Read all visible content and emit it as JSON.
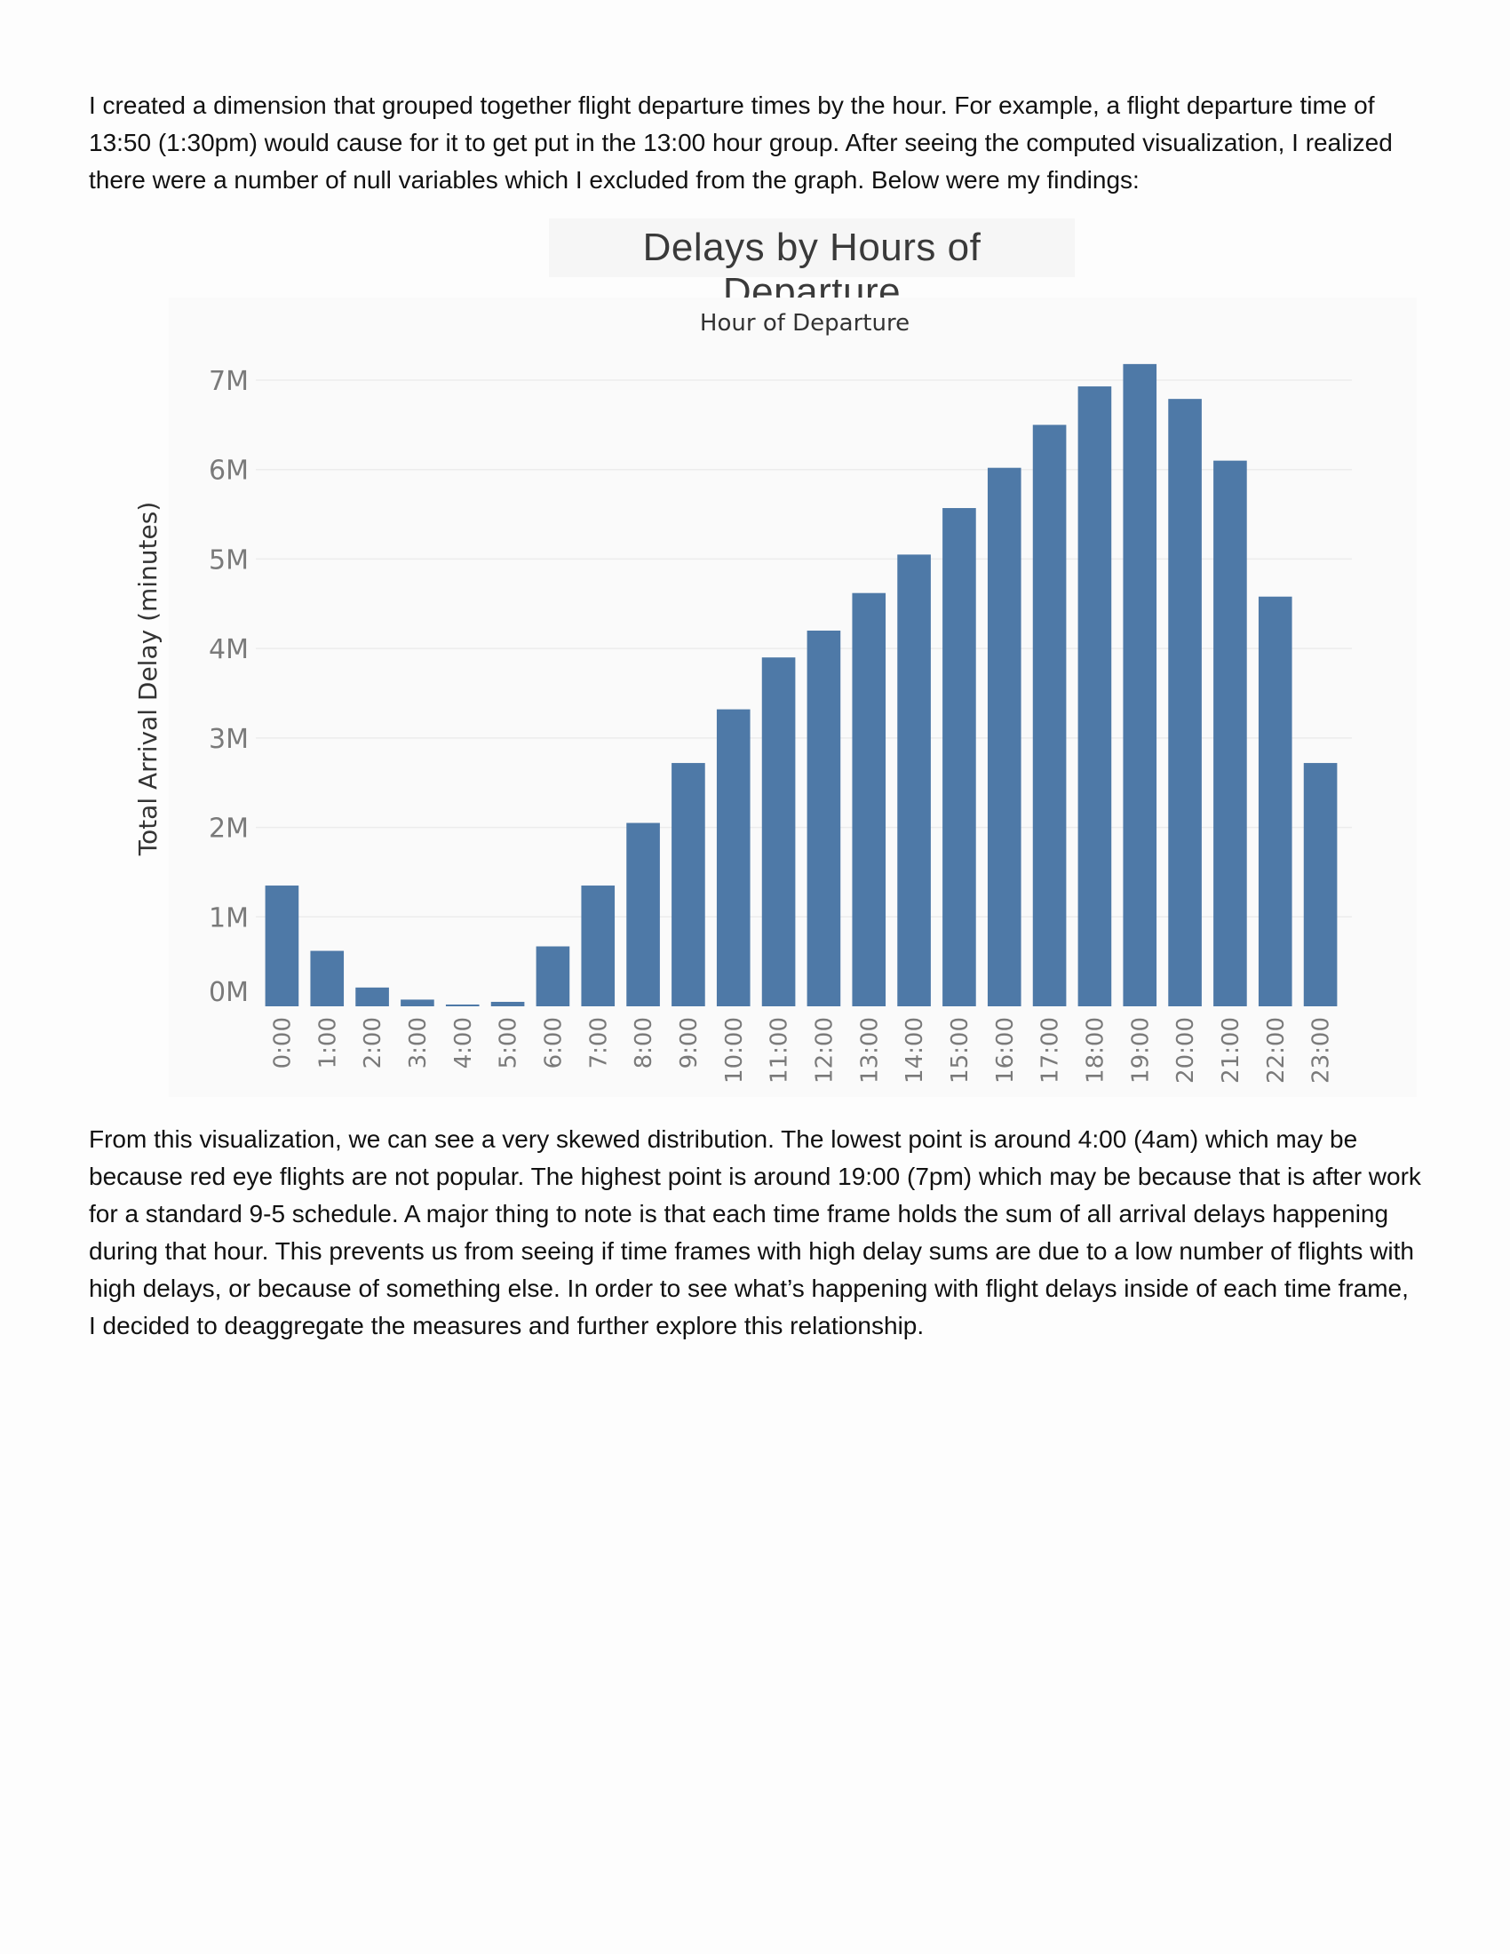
{
  "document": {
    "intro_paragraph": "I created a dimension that grouped together flight departure times by the hour. For example, a flight departure time of 13:50 (1:30pm) would cause for it to get put in the 13:00 hour group. After seeing the computed visualization, I realized there were a number of null variables which I excluded from the graph. Below were my findings:",
    "findings_paragraph": "From this visualization, we can see a very skewed distribution. The lowest point is around 4:00 (4am) which may be because red eye flights are not popular. The highest point is around 19:00 (7pm) which may be because that is after work for a standard 9-5 schedule. A major thing to note is that each time frame holds the sum of all arrival delays happening during that hour. This prevents us from seeing if time frames with high delay sums are due to a low number of flights with high delays, or because of something else. In order to see what’s happening with flight delays inside of each time frame, I decided to deaggregate the measures and further explore this relationship."
  },
  "chart_data": {
    "type": "bar",
    "title": "Delays by Hours of Departure",
    "header_label": "Hour of Departure",
    "xlabel": "",
    "ylabel": "Total Arrival Delay (minutes)",
    "categories": [
      "0:00",
      "1:00",
      "2:00",
      "3:00",
      "4:00",
      "5:00",
      "6:00",
      "7:00",
      "8:00",
      "9:00",
      "10:00",
      "11:00",
      "12:00",
      "13:00",
      "14:00",
      "15:00",
      "16:00",
      "17:00",
      "18:00",
      "19:00",
      "20:00",
      "21:00",
      "22:00",
      "23:00"
    ],
    "values": [
      1350000,
      620000,
      210000,
      75000,
      20000,
      50000,
      670000,
      1350000,
      2050000,
      2720000,
      3320000,
      3900000,
      4200000,
      4620000,
      5050000,
      5570000,
      6020000,
      6500000,
      6930000,
      7180000,
      6790000,
      6100000,
      4580000,
      2720000
    ],
    "ylim": [
      0,
      7000000
    ],
    "y_ticks": [
      0,
      1000000,
      2000000,
      3000000,
      4000000,
      5000000,
      6000000,
      7000000
    ],
    "y_tick_labels": [
      "0M",
      "1M",
      "2M",
      "3M",
      "4M",
      "5M",
      "6M",
      "7M"
    ],
    "bar_color": "#4e79a7",
    "grid": true,
    "legend": "none"
  }
}
